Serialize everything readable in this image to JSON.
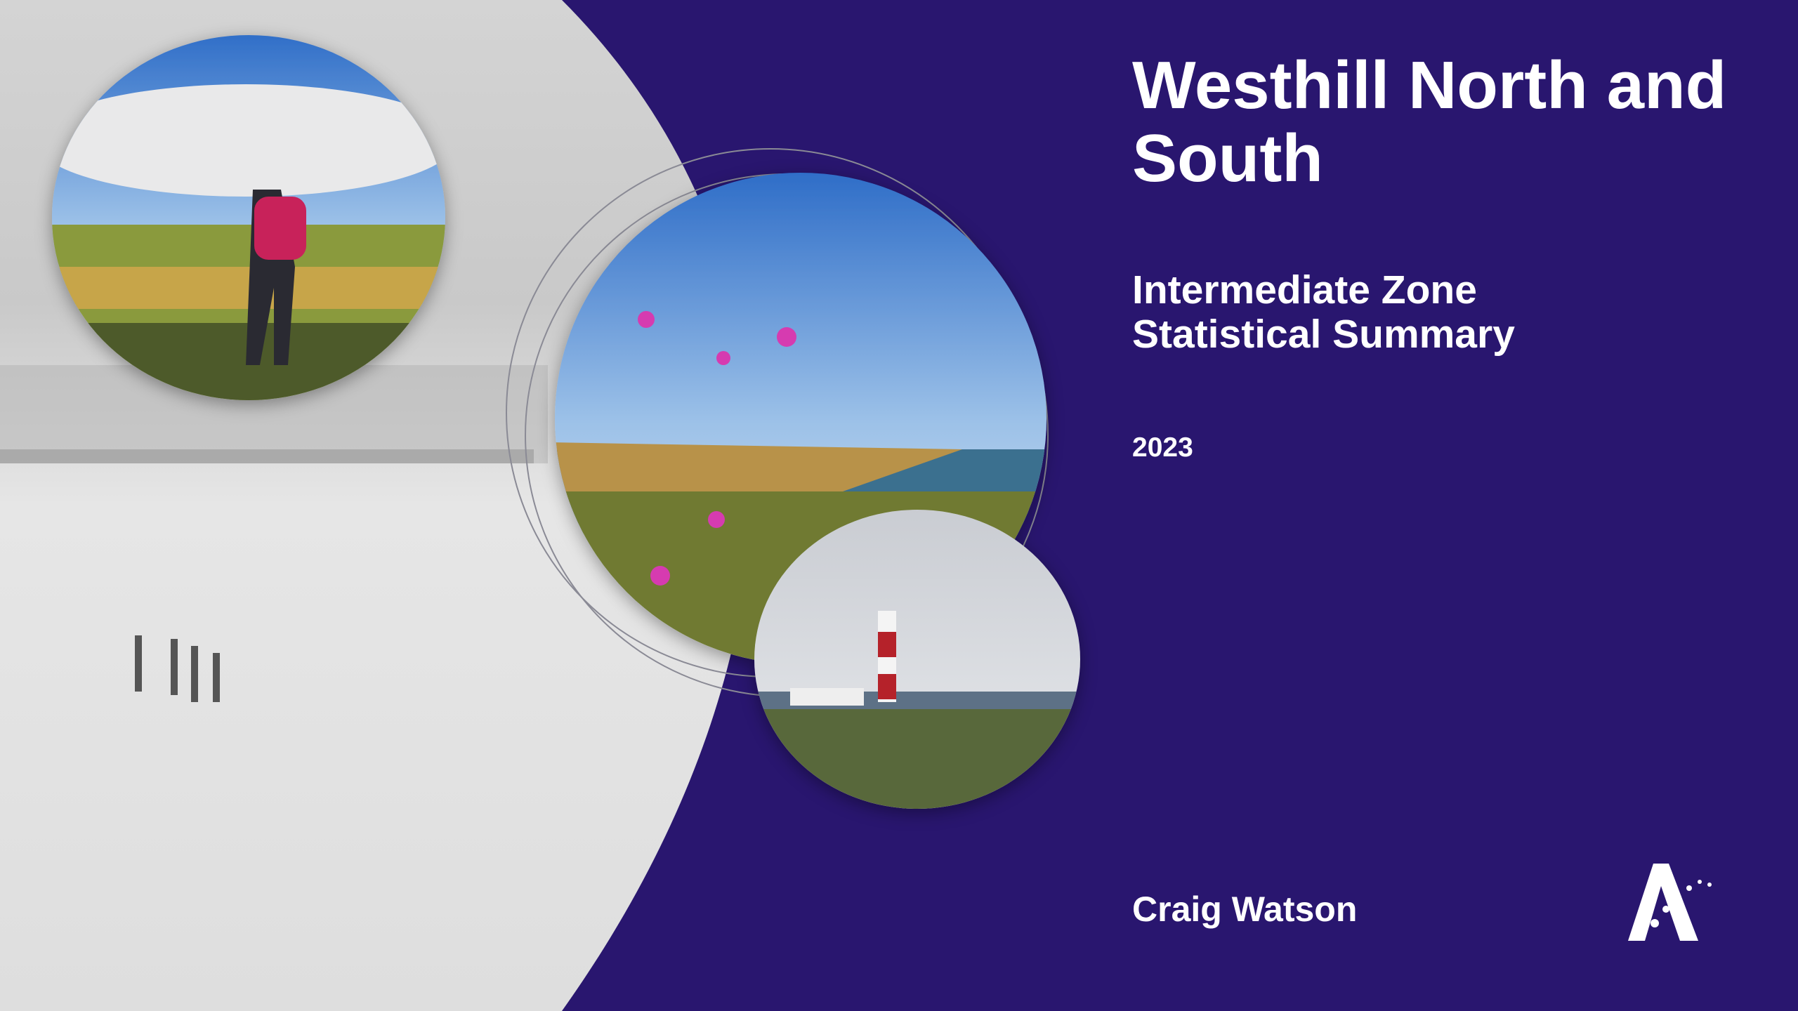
{
  "title": "Westhill North and South",
  "subtitle": [
    "Intermediate Zone",
    "Statistical Summary"
  ],
  "year": "2023",
  "author": "Craig Watson"
}
